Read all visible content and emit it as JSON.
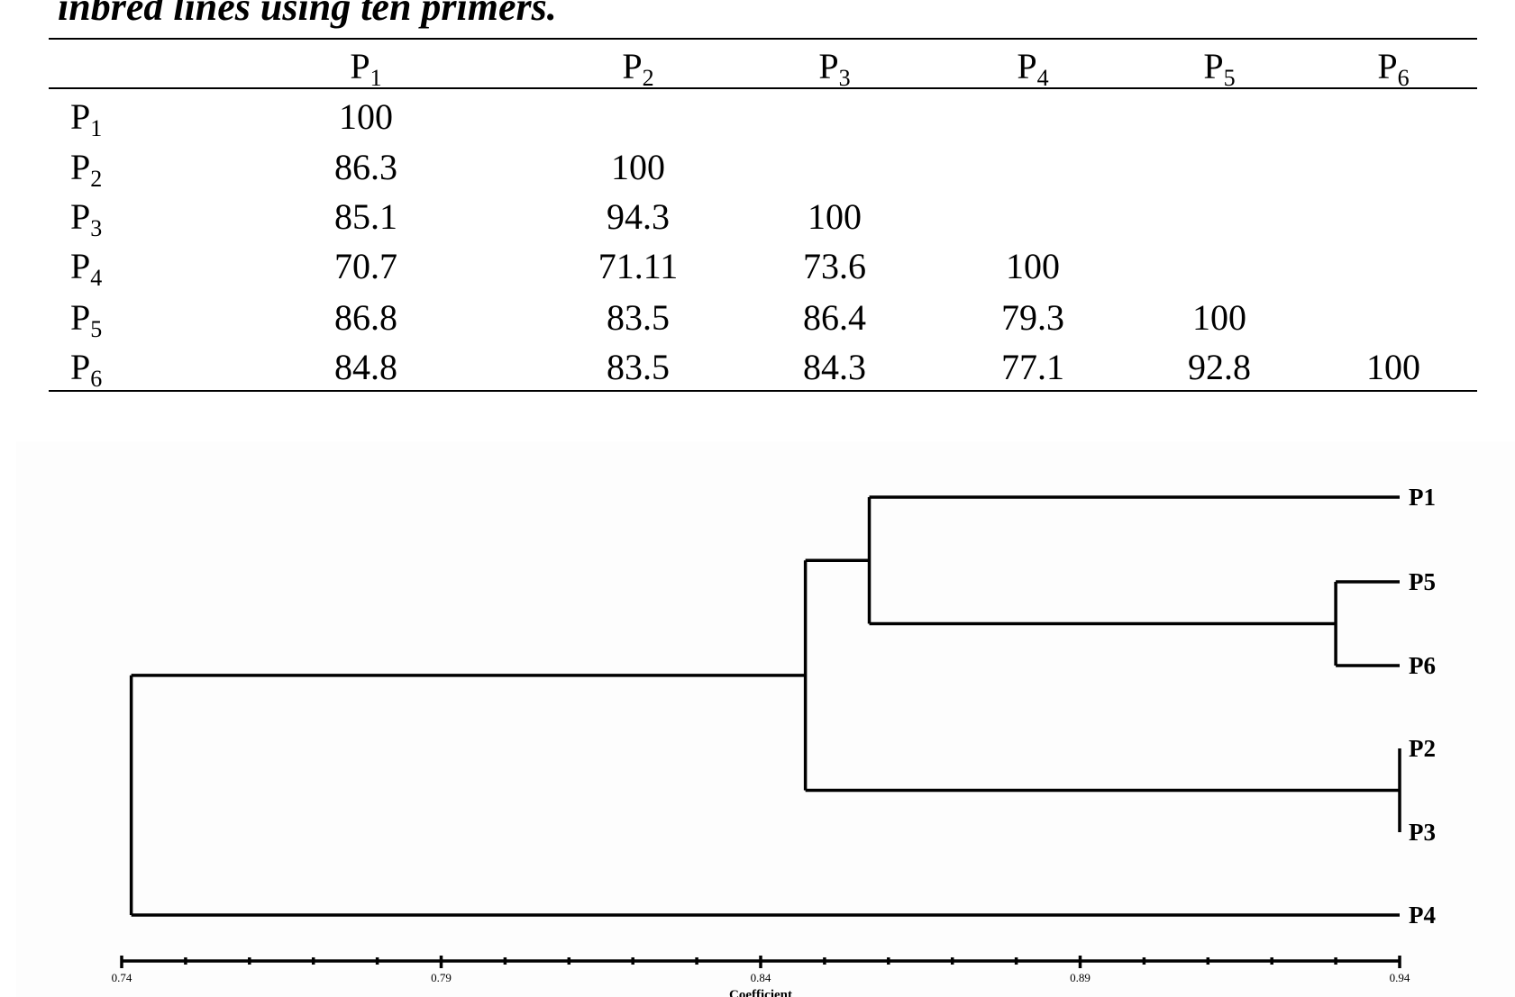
{
  "caption": "inbred lines using ten primers.",
  "table": {
    "columns": [
      {
        "base": "P",
        "sub": "1"
      },
      {
        "base": "P",
        "sub": "2"
      },
      {
        "base": "P",
        "sub": "3"
      },
      {
        "base": "P",
        "sub": "4"
      },
      {
        "base": "P",
        "sub": "5"
      },
      {
        "base": "P",
        "sub": "6"
      }
    ],
    "rows": [
      {
        "label": {
          "base": "P",
          "sub": "1"
        },
        "values": [
          "100",
          "",
          "",
          "",
          "",
          ""
        ]
      },
      {
        "label": {
          "base": "P",
          "sub": "2"
        },
        "values": [
          "86.3",
          "100",
          "",
          "",
          "",
          ""
        ]
      },
      {
        "label": {
          "base": "P",
          "sub": "3"
        },
        "values": [
          "85.1",
          "94.3",
          "100",
          "",
          "",
          ""
        ]
      },
      {
        "label": {
          "base": "P",
          "sub": "4"
        },
        "values": [
          "70.7",
          "71.11",
          "73.6",
          "100",
          "",
          ""
        ]
      },
      {
        "label": {
          "base": "P",
          "sub": "5"
        },
        "values": [
          "86.8",
          "83.5",
          "86.4",
          "79.3",
          "100",
          ""
        ]
      },
      {
        "label": {
          "base": "P",
          "sub": "6"
        },
        "values": [
          "84.8",
          "83.5",
          "84.3",
          "77.1",
          "92.8",
          "100"
        ]
      }
    ]
  },
  "dendrogram": {
    "xlabel": "Coefficient",
    "x_ticks": [
      "0.74",
      "0.79",
      "0.84",
      "0.89",
      "0.94"
    ],
    "x_range": [
      0.74,
      0.94
    ],
    "leaves": [
      "P1",
      "P5",
      "P6",
      "P2",
      "P3",
      "P4"
    ],
    "merges": [
      {
        "members": [
          "P2",
          "P3"
        ],
        "coefficient": 0.94
      },
      {
        "members": [
          "P5",
          "P6"
        ],
        "coefficient": 0.93
      },
      {
        "members": [
          "P1",
          "P5",
          "P6"
        ],
        "coefficient": 0.857
      },
      {
        "members": [
          "P1",
          "P5",
          "P6",
          "P2",
          "P3"
        ],
        "coefficient": 0.847
      },
      {
        "members": [
          "P1",
          "P5",
          "P6",
          "P2",
          "P3",
          "P4"
        ],
        "coefficient": 0.7415
      }
    ]
  }
}
